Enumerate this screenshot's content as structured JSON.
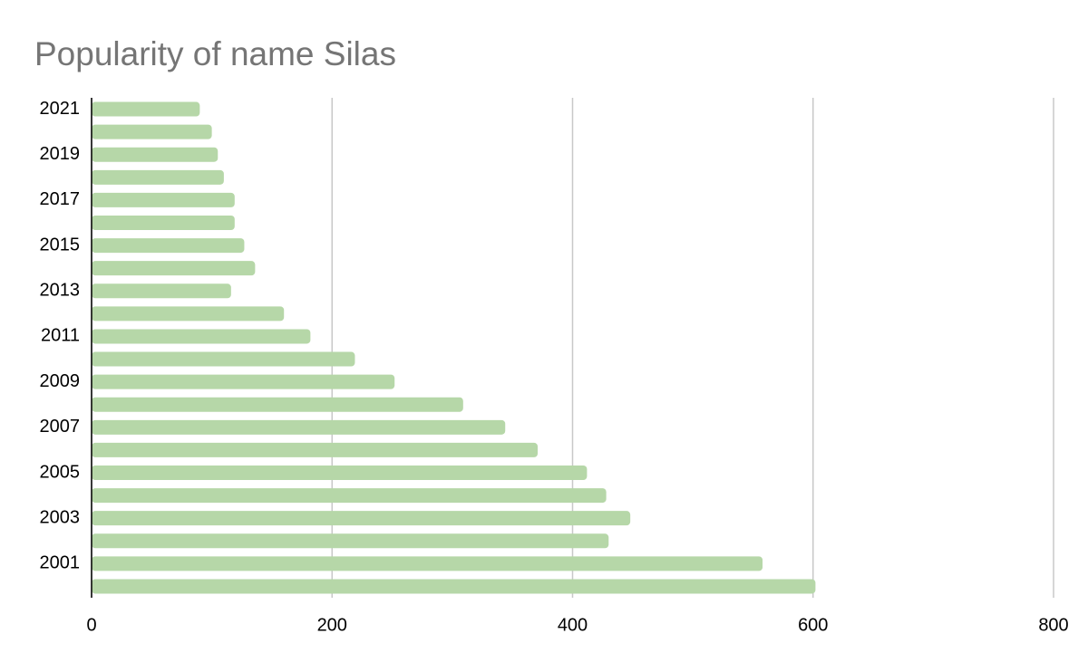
{
  "chart_data": {
    "type": "hbar",
    "title": "Popularity of name Silas",
    "categories": [
      "2021",
      null,
      "2019",
      null,
      "2017",
      null,
      "2015",
      null,
      "2013",
      null,
      "2011",
      null,
      "2009",
      null,
      "2007",
      null,
      "2005",
      null,
      "2003",
      null,
      "2001",
      null
    ],
    "values": [
      90,
      100,
      105,
      110,
      119,
      119,
      127,
      136,
      116,
      160,
      182,
      219,
      252,
      309,
      344,
      371,
      412,
      428,
      448,
      430,
      558,
      602
    ],
    "color": "#b6d7a8",
    "xlim": [
      0,
      800
    ],
    "xticks": [
      0,
      200,
      400,
      600,
      800
    ],
    "grid": true
  }
}
